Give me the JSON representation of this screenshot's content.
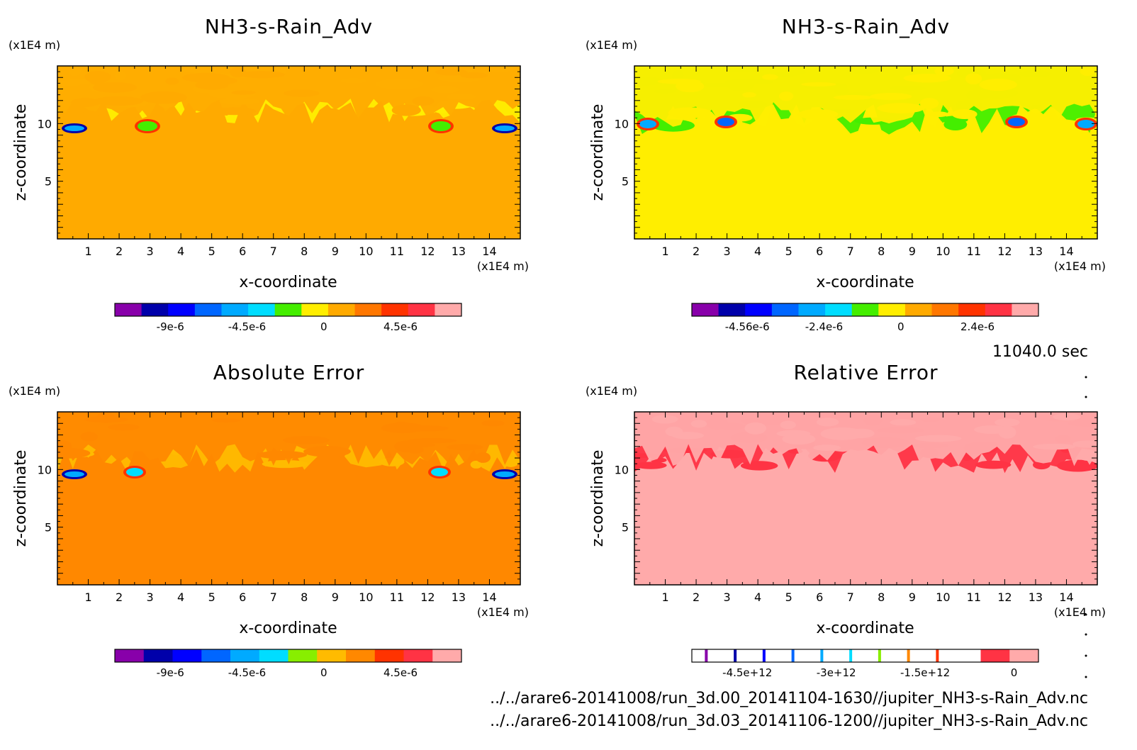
{
  "chart_data": [
    {
      "type": "heatmap",
      "title": "NH3-s-Rain_Adv",
      "xlabel": "x-coordinate",
      "ylabel": "z-coordinate",
      "x_unit": "(x1E4 m)",
      "y_unit": "(x1E4 m)",
      "xlim": [
        0,
        15
      ],
      "ylim": [
        0,
        15
      ],
      "x_ticks": [
        "1",
        "2",
        "3",
        "4",
        "5",
        "6",
        "7",
        "8",
        "9",
        "10",
        "11",
        "12",
        "13",
        "14"
      ],
      "y_ticks": [
        "5",
        "10"
      ],
      "background_color": "#ffaa00",
      "colorbar": {
        "colors": [
          "#8800aa",
          "#0000aa",
          "#0000ff",
          "#0066ff",
          "#00aaff",
          "#00ddff",
          "#44ee00",
          "#ffee00",
          "#ffaa00",
          "#ff7700",
          "#ff3300",
          "#ff3344",
          "#ffaaaa"
        ],
        "labels": [
          "-9e-6",
          "-4.5e-6",
          "0",
          "4.5e-6"
        ]
      }
    },
    {
      "type": "heatmap",
      "title": "NH3-s-Rain_Adv",
      "xlabel": "x-coordinate",
      "ylabel": "z-coordinate",
      "x_unit": "(x1E4 m)",
      "y_unit": "(x1E4 m)",
      "xlim": [
        0,
        15
      ],
      "ylim": [
        0,
        15
      ],
      "x_ticks": [
        "1",
        "2",
        "3",
        "4",
        "5",
        "6",
        "7",
        "8",
        "9",
        "10",
        "11",
        "12",
        "13",
        "14"
      ],
      "y_ticks": [
        "5",
        "10"
      ],
      "background_color": "#ffee00",
      "colorbar": {
        "colors": [
          "#8800aa",
          "#0000aa",
          "#0000ff",
          "#0066ff",
          "#00aaff",
          "#00ddff",
          "#44ee00",
          "#ffee00",
          "#ffaa00",
          "#ff7700",
          "#ff3300",
          "#ff3344",
          "#ffaaaa"
        ],
        "labels": [
          "-4.56e-6",
          "-2.4e-6",
          "0",
          "2.4e-6"
        ]
      }
    },
    {
      "type": "heatmap",
      "title": "Absolute Error",
      "xlabel": "x-coordinate",
      "ylabel": "z-coordinate",
      "x_unit": "(x1E4 m)",
      "y_unit": "(x1E4 m)",
      "xlim": [
        0,
        15
      ],
      "ylim": [
        0,
        15
      ],
      "x_ticks": [
        "1",
        "2",
        "3",
        "4",
        "5",
        "6",
        "7",
        "8",
        "9",
        "10",
        "11",
        "12",
        "13",
        "14"
      ],
      "y_ticks": [
        "5",
        "10"
      ],
      "background_color": "#ff8800",
      "colorbar": {
        "colors": [
          "#8800aa",
          "#0000aa",
          "#0000ff",
          "#0066ff",
          "#00aaff",
          "#00ddff",
          "#88ee00",
          "#ffbb00",
          "#ff8800",
          "#ff3300",
          "#ff3344",
          "#ffaaaa"
        ],
        "labels": [
          "-9e-6",
          "-4.5e-6",
          "0",
          "4.5e-6"
        ]
      }
    },
    {
      "type": "heatmap",
      "title": "Relative Error",
      "xlabel": "x-coordinate",
      "ylabel": "z-coordinate",
      "x_unit": "(x1E4 m)",
      "y_unit": "(x1E4 m)",
      "xlim": [
        0,
        15
      ],
      "ylim": [
        0,
        15
      ],
      "x_ticks": [
        "1",
        "2",
        "3",
        "4",
        "5",
        "6",
        "7",
        "8",
        "9",
        "10",
        "11",
        "12",
        "13",
        "14"
      ],
      "y_ticks": [
        "5",
        "10"
      ],
      "background_color": "#ffaaaa",
      "colorbar": {
        "colors": [
          "#ffffff",
          "#ffffff",
          "#ffffff",
          "#ffffff",
          "#ffffff",
          "#ffffff",
          "#ffffff",
          "#ffffff",
          "#ffffff",
          "#ffffff",
          "#ff3344",
          "#ffaaaa"
        ],
        "stripe_colors": [
          "#8800aa",
          "#0000aa",
          "#0000ff",
          "#0066ff",
          "#00aaff",
          "#00ddff",
          "#88ee00",
          "#ff8800",
          "#ff3300"
        ],
        "labels": [
          "-4.5e+12",
          "-3e+12",
          "-1.5e+12",
          "0"
        ]
      }
    }
  ],
  "time_label": "11040.0 sec",
  "footer": {
    "line1": "../../arare6-20141008/run_3d.00_20141104-1630//jupiter_NH3-s-Rain_Adv.nc",
    "line2": "../../arare6-20141008/run_3d.03_20141106-1200//jupiter_NH3-s-Rain_Adv.nc"
  }
}
